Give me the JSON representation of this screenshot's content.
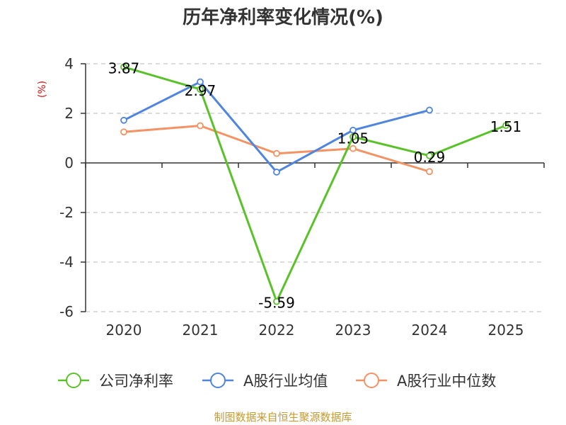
{
  "chart_data": {
    "type": "line",
    "title": "历年净利率变化情况(%)",
    "ylabel": "(%)",
    "xlabel": "",
    "categories": [
      "2020",
      "2021",
      "2022",
      "2023",
      "2024",
      "2025"
    ],
    "ylim": [
      -6,
      4
    ],
    "yticks": [
      4,
      2,
      0,
      -2,
      -4,
      -6
    ],
    "grid": true,
    "legend_position": "bottom",
    "series": [
      {
        "name": "公司净利率",
        "color": "#5ac229",
        "values": [
          3.87,
          2.97,
          -5.59,
          1.05,
          0.29,
          1.51
        ],
        "labels": [
          "3.87",
          "2.97",
          "-5.59",
          "1.05",
          "0.29",
          "1.51"
        ]
      },
      {
        "name": "A股行业均值",
        "color": "#4f84df",
        "values": [
          1.72,
          3.27,
          -0.37,
          1.32,
          2.13,
          null
        ]
      },
      {
        "name": "A股行业中位数",
        "color": "#f59263",
        "values": [
          1.25,
          1.5,
          0.38,
          0.58,
          -0.35,
          null
        ]
      }
    ]
  },
  "unit_color": "#dd1111",
  "source": "制图数据来自恒生聚源数据库",
  "source_color": "#c49a33"
}
